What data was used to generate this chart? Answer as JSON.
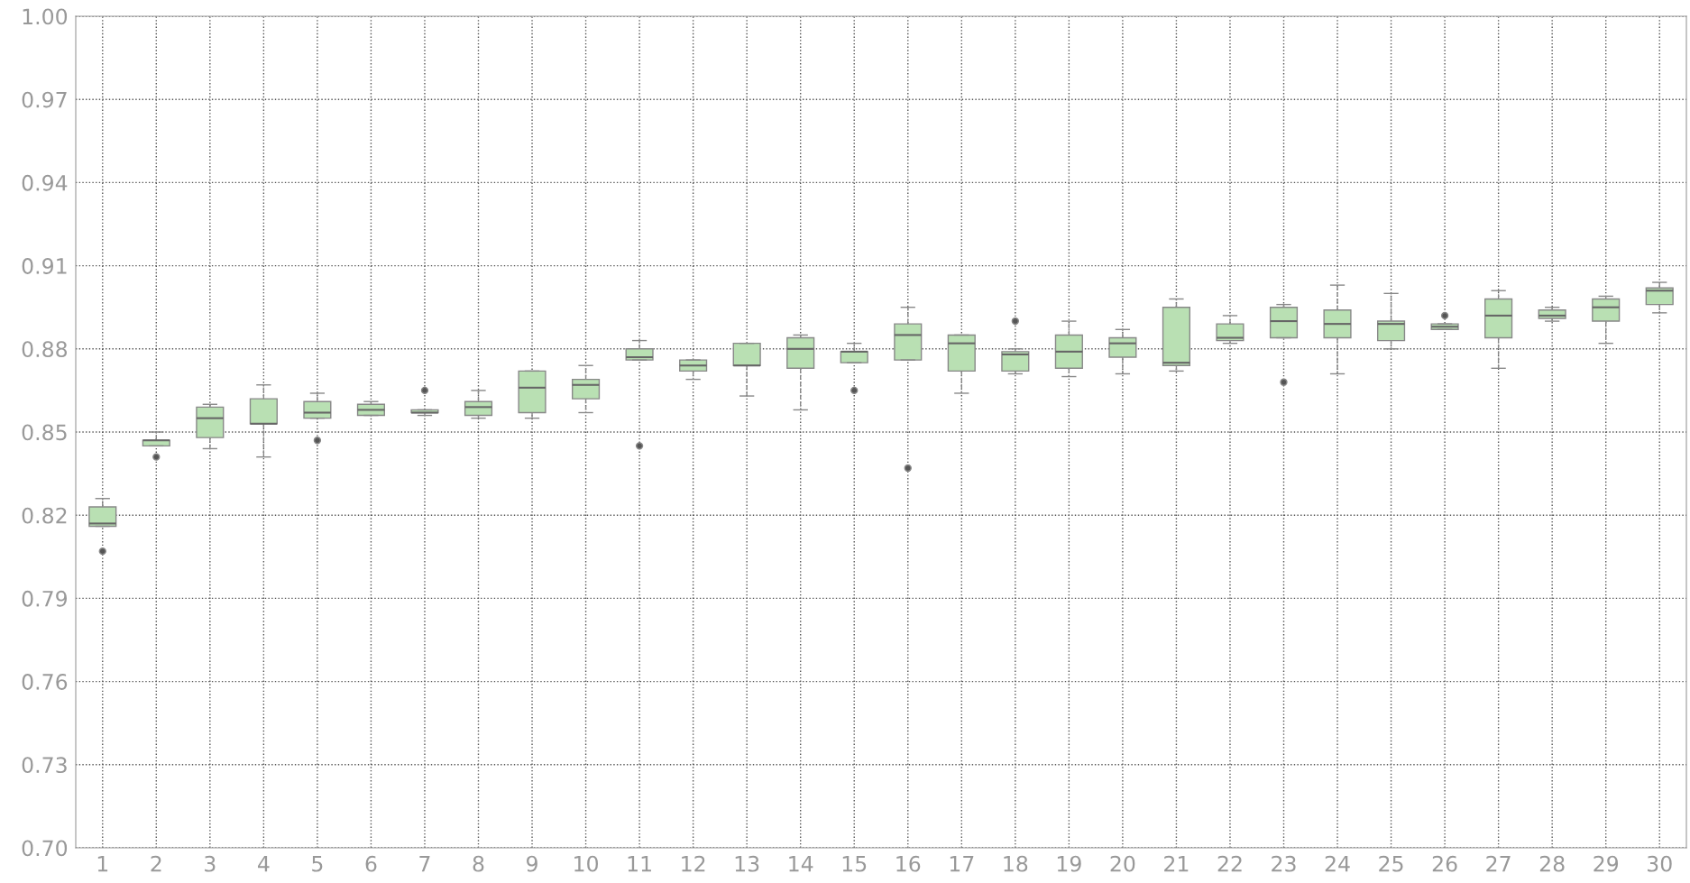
{
  "chart_data": {
    "type": "box",
    "categories": [
      "1",
      "2",
      "3",
      "4",
      "5",
      "6",
      "7",
      "8",
      "9",
      "10",
      "11",
      "12",
      "13",
      "14",
      "15",
      "16",
      "17",
      "18",
      "19",
      "20",
      "21",
      "22",
      "23",
      "24",
      "25",
      "26",
      "27",
      "28",
      "29",
      "30"
    ],
    "color": "#b9e0b3",
    "boxes": [
      {
        "low": 0.816,
        "q1": 0.816,
        "median": 0.817,
        "q3": 0.823,
        "high": 0.826,
        "outliers": [
          0.807
        ]
      },
      {
        "low": 0.845,
        "q1": 0.845,
        "median": 0.847,
        "q3": 0.847,
        "high": 0.85,
        "outliers": [
          0.841
        ]
      },
      {
        "low": 0.844,
        "q1": 0.848,
        "median": 0.855,
        "q3": 0.859,
        "high": 0.86
      },
      {
        "low": 0.841,
        "q1": 0.853,
        "median": 0.853,
        "q3": 0.862,
        "high": 0.867
      },
      {
        "low": 0.855,
        "q1": 0.855,
        "median": 0.857,
        "q3": 0.861,
        "high": 0.864,
        "outliers": [
          0.847
        ]
      },
      {
        "low": 0.856,
        "q1": 0.856,
        "median": 0.858,
        "q3": 0.86,
        "high": 0.861
      },
      {
        "low": 0.856,
        "q1": 0.857,
        "median": 0.857,
        "q3": 0.858,
        "high": 0.858,
        "outliers": [
          0.865
        ]
      },
      {
        "low": 0.855,
        "q1": 0.856,
        "median": 0.859,
        "q3": 0.861,
        "high": 0.865
      },
      {
        "low": 0.855,
        "q1": 0.857,
        "median": 0.866,
        "q3": 0.872,
        "high": 0.872
      },
      {
        "low": 0.857,
        "q1": 0.862,
        "median": 0.867,
        "q3": 0.869,
        "high": 0.874
      },
      {
        "low": 0.876,
        "q1": 0.876,
        "median": 0.877,
        "q3": 0.88,
        "high": 0.883,
        "outliers": [
          0.845
        ]
      },
      {
        "low": 0.869,
        "q1": 0.872,
        "median": 0.874,
        "q3": 0.876,
        "high": 0.876
      },
      {
        "low": 0.863,
        "q1": 0.874,
        "median": 0.874,
        "q3": 0.882,
        "high": 0.882
      },
      {
        "low": 0.858,
        "q1": 0.873,
        "median": 0.88,
        "q3": 0.884,
        "high": 0.885
      },
      {
        "low": 0.875,
        "q1": 0.875,
        "median": 0.879,
        "q3": 0.879,
        "high": 0.882,
        "outliers": [
          0.865
        ]
      },
      {
        "low": 0.876,
        "q1": 0.876,
        "median": 0.885,
        "q3": 0.889,
        "high": 0.895,
        "outliers": [
          0.837
        ]
      },
      {
        "low": 0.864,
        "q1": 0.872,
        "median": 0.882,
        "q3": 0.885,
        "high": 0.885
      },
      {
        "low": 0.871,
        "q1": 0.872,
        "median": 0.878,
        "q3": 0.879,
        "high": 0.88,
        "outliers": [
          0.89
        ]
      },
      {
        "low": 0.87,
        "q1": 0.873,
        "median": 0.879,
        "q3": 0.885,
        "high": 0.89
      },
      {
        "low": 0.871,
        "q1": 0.877,
        "median": 0.882,
        "q3": 0.884,
        "high": 0.887
      },
      {
        "low": 0.872,
        "q1": 0.874,
        "median": 0.875,
        "q3": 0.895,
        "high": 0.898
      },
      {
        "low": 0.882,
        "q1": 0.883,
        "median": 0.884,
        "q3": 0.889,
        "high": 0.892
      },
      {
        "low": 0.884,
        "q1": 0.884,
        "median": 0.89,
        "q3": 0.895,
        "high": 0.896,
        "outliers": [
          0.868
        ]
      },
      {
        "low": 0.871,
        "q1": 0.884,
        "median": 0.889,
        "q3": 0.894,
        "high": 0.903
      },
      {
        "low": 0.88,
        "q1": 0.883,
        "median": 0.889,
        "q3": 0.89,
        "high": 0.9
      },
      {
        "low": 0.887,
        "q1": 0.887,
        "median": 0.888,
        "q3": 0.889,
        "high": 0.889,
        "outliers": [
          0.892
        ]
      },
      {
        "low": 0.873,
        "q1": 0.884,
        "median": 0.892,
        "q3": 0.898,
        "high": 0.901
      },
      {
        "low": 0.89,
        "q1": 0.891,
        "median": 0.892,
        "q3": 0.894,
        "high": 0.895
      },
      {
        "low": 0.882,
        "q1": 0.89,
        "median": 0.895,
        "q3": 0.898,
        "high": 0.899
      },
      {
        "low": 0.893,
        "q1": 0.896,
        "median": 0.901,
        "q3": 0.902,
        "high": 0.904
      }
    ],
    "ylim": [
      0.7,
      1.0
    ],
    "yticks": [
      {
        "value": 0.7,
        "label": "0.70"
      },
      0.73,
      0.76,
      0.79,
      0.82,
      0.85,
      0.88,
      0.91,
      0.94,
      0.97,
      {
        "value": 1.0,
        "label": "1.00"
      }
    ],
    "grid": true
  }
}
